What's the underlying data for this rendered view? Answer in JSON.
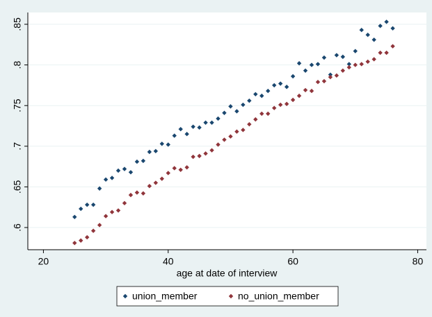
{
  "chart_data": {
    "type": "scatter",
    "xlabel": "age at date of interview",
    "x": [
      25,
      26,
      27,
      28,
      29,
      30,
      31,
      32,
      33,
      34,
      35,
      36,
      37,
      38,
      39,
      40,
      41,
      42,
      43,
      44,
      45,
      46,
      47,
      48,
      49,
      50,
      51,
      52,
      53,
      54,
      55,
      56,
      57,
      58,
      59,
      60,
      61,
      62,
      63,
      64,
      65,
      66,
      67,
      68,
      69,
      70,
      71,
      72,
      73,
      74,
      75,
      76
    ],
    "series": [
      {
        "name": "union_member",
        "color": "#1a476f",
        "values": [
          0.613,
          0.623,
          0.628,
          0.628,
          0.648,
          0.659,
          0.661,
          0.67,
          0.672,
          0.668,
          0.681,
          0.682,
          0.693,
          0.694,
          0.703,
          0.702,
          0.713,
          0.721,
          0.715,
          0.724,
          0.723,
          0.729,
          0.729,
          0.734,
          0.741,
          0.749,
          0.743,
          0.751,
          0.756,
          0.764,
          0.762,
          0.768,
          0.775,
          0.777,
          0.773,
          0.786,
          0.802,
          0.793,
          0.8,
          0.801,
          0.809,
          0.788,
          0.812,
          0.81,
          0.801,
          0.817,
          0.843,
          0.837,
          0.831,
          0.848,
          0.853,
          0.845
        ]
      },
      {
        "name": "no_union_member",
        "color": "#90353b",
        "values": [
          0.581,
          0.584,
          0.588,
          0.596,
          0.603,
          0.614,
          0.619,
          0.621,
          0.63,
          0.64,
          0.643,
          0.642,
          0.651,
          0.655,
          0.66,
          0.667,
          0.673,
          0.671,
          0.674,
          0.687,
          0.688,
          0.691,
          0.695,
          0.702,
          0.708,
          0.712,
          0.718,
          0.72,
          0.727,
          0.733,
          0.74,
          0.74,
          0.747,
          0.751,
          0.752,
          0.757,
          0.762,
          0.769,
          0.768,
          0.779,
          0.78,
          0.785,
          0.787,
          0.793,
          0.797,
          0.8,
          0.801,
          0.804,
          0.807,
          0.815,
          0.815,
          0.823
        ]
      }
    ],
    "xlim": [
      17.5,
      81.4
    ],
    "xticks": [
      20,
      40,
      60,
      80
    ],
    "ylim": [
      0.5727,
      0.8645
    ],
    "yticks": [
      {
        "value": 0.6,
        "label": ".6"
      },
      {
        "value": 0.65,
        "label": ".65"
      },
      {
        "value": 0.7,
        "label": ".7"
      },
      {
        "value": 0.75,
        "label": ".75"
      },
      {
        "value": 0.8,
        "label": ".8"
      },
      {
        "value": 0.85,
        "label": ".85"
      }
    ],
    "grid": true,
    "legend": "bottom"
  }
}
